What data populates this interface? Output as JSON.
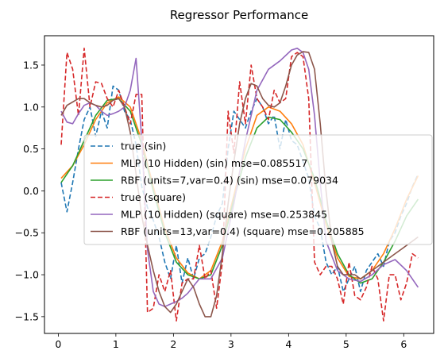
{
  "chart_data": {
    "type": "line",
    "title": "Regressor Performance",
    "xlabel": "",
    "ylabel": "",
    "xlim": [
      -0.24,
      6.52
    ],
    "ylim": [
      -1.7,
      1.85
    ],
    "x_ticks": [
      0,
      1,
      2,
      3,
      4,
      5,
      6
    ],
    "y_ticks": [
      -1.5,
      -1.0,
      -0.5,
      0.0,
      0.5,
      1.0,
      1.5
    ],
    "x_tick_labels": [
      "0",
      "1",
      "2",
      "3",
      "4",
      "5",
      "6"
    ],
    "y_tick_labels": [
      "−1.5",
      "−1.0",
      "−0.5",
      "0.0",
      "0.5",
      "1.0",
      "1.5"
    ],
    "grid": false,
    "legend_position": "center",
    "series": [
      {
        "name": "true (sin)",
        "color": "#1f77b4",
        "dash": "dashed",
        "x": [
          0.05,
          0.15,
          0.25,
          0.35,
          0.45,
          0.55,
          0.65,
          0.75,
          0.85,
          0.95,
          1.05,
          1.15,
          1.25,
          1.35,
          1.45,
          1.55,
          1.65,
          1.75,
          1.85,
          1.95,
          2.05,
          2.15,
          2.25,
          2.35,
          2.45,
          2.55,
          2.65,
          2.75,
          2.85,
          2.95,
          3.05,
          3.15,
          3.25,
          3.35,
          3.45,
          3.55,
          3.65,
          3.75,
          3.85,
          3.95,
          4.05,
          4.15,
          4.25,
          4.35,
          4.45,
          4.55,
          4.65,
          4.75,
          4.85,
          4.95,
          5.05,
          5.15,
          5.25,
          5.35,
          5.45,
          5.55,
          5.65,
          5.75,
          5.85,
          5.95,
          6.05,
          6.15,
          6.25
        ],
        "y": [
          0.1,
          -0.25,
          0.1,
          0.5,
          0.85,
          1.0,
          0.65,
          0.95,
          0.75,
          1.25,
          1.2,
          0.95,
          0.85,
          0.55,
          0.05,
          -0.2,
          -0.35,
          -0.55,
          -0.85,
          -1.05,
          -0.65,
          -1.1,
          -0.8,
          -1.05,
          -0.8,
          -0.75,
          -0.55,
          -0.3,
          -0.15,
          0.5,
          0.95,
          0.85,
          0.75,
          0.95,
          1.1,
          1.0,
          0.8,
          0.9,
          0.5,
          0.85,
          0.6,
          0.55,
          0.35,
          0.15,
          -0.3,
          -0.45,
          -0.85,
          -1.0,
          -0.9,
          -1.2,
          -1.05,
          -0.9,
          -1.2,
          -0.95,
          -0.85,
          -0.75,
          -0.9,
          -0.6,
          -0.5,
          -0.3,
          -0.15,
          0.05,
          0.2
        ]
      },
      {
        "name": "MLP (10 Hidden) (sin) mse=0.085517",
        "color": "#ff7f0e",
        "dash": "solid",
        "x": [
          0.05,
          0.25,
          0.45,
          0.65,
          0.85,
          1.05,
          1.25,
          1.45,
          1.65,
          1.85,
          2.05,
          2.25,
          2.45,
          2.65,
          2.85,
          3.05,
          3.25,
          3.45,
          3.65,
          3.85,
          4.05,
          4.25,
          4.45,
          4.65,
          4.85,
          5.05,
          5.25,
          5.45,
          5.65,
          5.85,
          6.05,
          6.25
        ],
        "y": [
          0.15,
          0.3,
          0.55,
          0.85,
          1.05,
          1.12,
          1.0,
          0.6,
          0.05,
          -0.45,
          -0.8,
          -0.98,
          -1.05,
          -0.95,
          -0.6,
          -0.05,
          0.5,
          0.9,
          1.0,
          0.95,
          0.8,
          0.55,
          0.1,
          -0.4,
          -0.8,
          -1.02,
          -1.05,
          -0.95,
          -0.75,
          -0.45,
          -0.1,
          0.18
        ]
      },
      {
        "name": "RBF (units=7,var=0.4) (sin) mse=0.079034",
        "color": "#2ca02c",
        "dash": "solid",
        "x": [
          0.05,
          0.25,
          0.45,
          0.65,
          0.85,
          1.05,
          1.25,
          1.45,
          1.65,
          1.85,
          2.05,
          2.25,
          2.45,
          2.65,
          2.85,
          3.05,
          3.25,
          3.45,
          3.65,
          3.85,
          4.05,
          4.25,
          4.45,
          4.65,
          4.85,
          5.05,
          5.25,
          5.45,
          5.65,
          5.85,
          6.05,
          6.25
        ],
        "y": [
          0.1,
          0.3,
          0.6,
          0.9,
          1.08,
          1.1,
          0.95,
          0.55,
          0.0,
          -0.5,
          -0.85,
          -1.0,
          -1.05,
          -1.0,
          -0.65,
          -0.1,
          0.4,
          0.75,
          0.88,
          0.85,
          0.7,
          0.5,
          0.15,
          -0.35,
          -0.75,
          -1.0,
          -1.1,
          -1.05,
          -0.85,
          -0.6,
          -0.3,
          -0.1
        ]
      },
      {
        "name": "true (square)",
        "color": "#d62728",
        "dash": "dashed",
        "x": [
          0.05,
          0.15,
          0.25,
          0.35,
          0.45,
          0.55,
          0.65,
          0.75,
          0.85,
          0.95,
          1.05,
          1.15,
          1.25,
          1.35,
          1.45,
          1.55,
          1.65,
          1.75,
          1.85,
          1.95,
          2.05,
          2.15,
          2.25,
          2.35,
          2.45,
          2.55,
          2.65,
          2.75,
          2.85,
          2.95,
          3.05,
          3.15,
          3.25,
          3.35,
          3.45,
          3.55,
          3.65,
          3.75,
          3.85,
          3.95,
          4.05,
          4.15,
          4.25,
          4.35,
          4.45,
          4.55,
          4.65,
          4.75,
          4.85,
          4.95,
          5.05,
          5.15,
          5.25,
          5.35,
          5.45,
          5.55,
          5.65,
          5.75,
          5.85,
          5.95,
          6.05,
          6.15,
          6.25
        ],
        "y": [
          0.55,
          1.65,
          1.45,
          0.9,
          1.7,
          1.0,
          1.3,
          1.28,
          1.1,
          1.0,
          1.2,
          1.0,
          0.8,
          1.15,
          1.15,
          -1.45,
          -1.4,
          -1.0,
          -1.2,
          -0.95,
          -1.55,
          -1.1,
          -1.05,
          -1.05,
          -0.65,
          -1.05,
          -0.95,
          -1.4,
          -0.85,
          0.95,
          0.45,
          1.3,
          0.8,
          1.5,
          1.1,
          1.0,
          0.85,
          1.2,
          1.05,
          1.1,
          1.6,
          1.65,
          1.6,
          1.1,
          -0.85,
          -1.0,
          -0.9,
          -0.9,
          -1.05,
          -1.35,
          -0.85,
          -1.25,
          -1.3,
          -1.15,
          -0.9,
          -1.05,
          -1.55,
          -1.0,
          -1.0,
          -1.3,
          -1.1,
          -0.75,
          -0.8
        ]
      },
      {
        "name": "MLP (10 Hidden) (square) mse=0.253845",
        "color": "#9467bd",
        "dash": "solid",
        "x": [
          0.05,
          0.15,
          0.25,
          0.35,
          0.45,
          0.55,
          0.65,
          0.75,
          0.85,
          0.95,
          1.05,
          1.15,
          1.25,
          1.35,
          1.45,
          1.55,
          1.65,
          1.75,
          1.85,
          1.95,
          2.05,
          2.15,
          2.25,
          2.45,
          2.65,
          2.85,
          3.05,
          3.25,
          3.45,
          3.65,
          3.85,
          4.05,
          4.15,
          4.25,
          4.35,
          4.45,
          4.55,
          4.65,
          4.85,
          5.05,
          5.25,
          5.45,
          5.65,
          5.85,
          6.05,
          6.25
        ],
        "y": [
          0.95,
          0.82,
          0.8,
          0.92,
          1.02,
          1.05,
          1.02,
          0.95,
          0.9,
          0.92,
          0.95,
          1.0,
          1.2,
          1.58,
          0.6,
          -0.7,
          -1.2,
          -1.35,
          -1.38,
          -1.35,
          -1.32,
          -1.28,
          -1.22,
          -1.05,
          -1.05,
          -0.8,
          -0.15,
          0.6,
          1.2,
          1.45,
          1.55,
          1.68,
          1.7,
          1.65,
          1.45,
          0.9,
          0.1,
          -0.6,
          -0.95,
          -1.05,
          -1.08,
          -1.0,
          -0.88,
          -0.82,
          -0.95,
          -1.15
        ]
      },
      {
        "name": "RBF (units=13,var=0.4) (square) mse=0.205885",
        "color": "#8c564b",
        "dash": "solid",
        "x": [
          0.05,
          0.15,
          0.25,
          0.35,
          0.45,
          0.55,
          0.65,
          0.75,
          0.85,
          0.95,
          1.05,
          1.15,
          1.25,
          1.35,
          1.45,
          1.55,
          1.65,
          1.75,
          1.85,
          1.95,
          2.05,
          2.15,
          2.25,
          2.35,
          2.45,
          2.55,
          2.65,
          2.75,
          2.85,
          2.95,
          3.05,
          3.15,
          3.25,
          3.35,
          3.45,
          3.55,
          3.65,
          3.75,
          3.85,
          3.95,
          4.05,
          4.15,
          4.25,
          4.35,
          4.45,
          4.55,
          4.65,
          4.75,
          4.85,
          4.95,
          5.05,
          5.15,
          5.25,
          5.35,
          5.45,
          5.55,
          5.65,
          5.75,
          5.85,
          5.95,
          6.05,
          6.15,
          6.25
        ],
        "y": [
          0.9,
          1.02,
          1.06,
          1.1,
          1.1,
          1.05,
          1.02,
          1.0,
          1.02,
          1.08,
          1.1,
          1.0,
          0.7,
          0.2,
          -0.3,
          -0.65,
          -0.95,
          -1.2,
          -1.38,
          -1.45,
          -1.35,
          -1.2,
          -1.05,
          -1.15,
          -1.35,
          -1.5,
          -1.5,
          -1.25,
          -0.75,
          -0.15,
          0.35,
          0.8,
          1.1,
          1.28,
          1.25,
          1.1,
          1.02,
          1.0,
          1.05,
          1.25,
          1.5,
          1.62,
          1.66,
          1.65,
          1.45,
          0.8,
          0.0,
          -0.6,
          -0.9,
          -1.0,
          -1.0,
          -1.0,
          -1.05,
          -1.0,
          -0.95,
          -0.9,
          -0.85,
          -0.8,
          -0.75,
          -0.7,
          -0.65,
          -0.6,
          -0.55
        ]
      }
    ]
  }
}
